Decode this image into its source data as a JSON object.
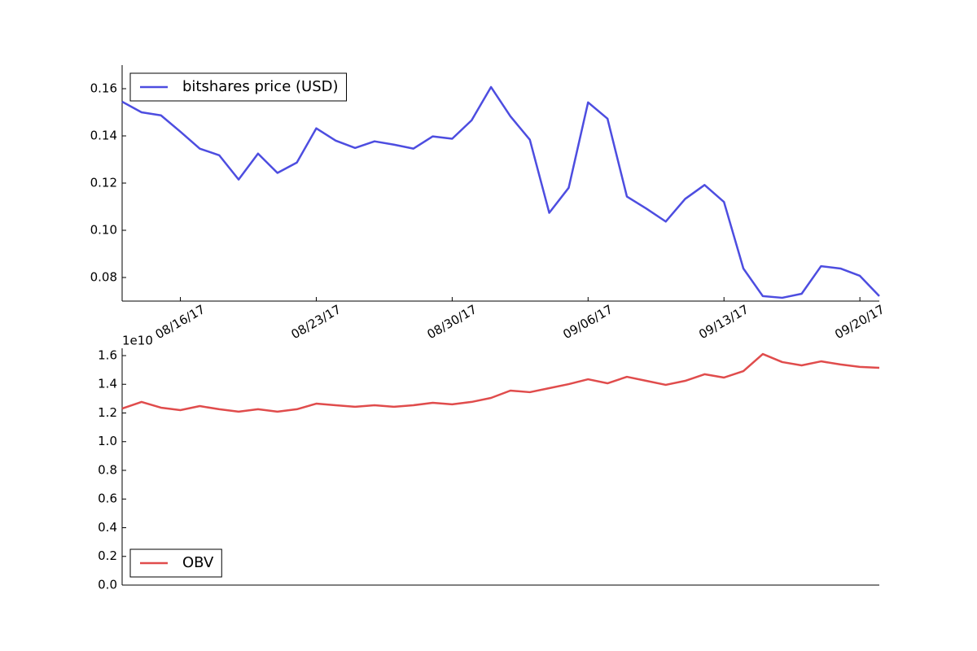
{
  "chart_data": [
    {
      "type": "line",
      "legend": "upper left",
      "xlim": [
        "2017-08-13",
        "2017-09-21"
      ],
      "x": [
        "2017-08-13",
        "2017-08-14",
        "2017-08-15",
        "2017-08-16",
        "2017-08-17",
        "2017-08-18",
        "2017-08-19",
        "2017-08-20",
        "2017-08-21",
        "2017-08-22",
        "2017-08-23",
        "2017-08-24",
        "2017-08-25",
        "2017-08-26",
        "2017-08-27",
        "2017-08-28",
        "2017-08-29",
        "2017-08-30",
        "2017-08-31",
        "2017-09-01",
        "2017-09-02",
        "2017-09-03",
        "2017-09-04",
        "2017-09-05",
        "2017-09-06",
        "2017-09-07",
        "2017-09-08",
        "2017-09-09",
        "2017-09-10",
        "2017-09-11",
        "2017-09-12",
        "2017-09-13",
        "2017-09-14",
        "2017-09-15",
        "2017-09-16",
        "2017-09-17",
        "2017-09-18",
        "2017-09-19",
        "2017-09-20",
        "2017-09-21"
      ],
      "xticks": [
        {
          "value": "2017-08-16",
          "label": "08/16/17"
        },
        {
          "value": "2017-08-23",
          "label": "08/23/17"
        },
        {
          "value": "2017-08-30",
          "label": "08/30/17"
        },
        {
          "value": "2017-09-06",
          "label": "09/06/17"
        },
        {
          "value": "2017-09-13",
          "label": "09/13/17"
        },
        {
          "value": "2017-09-20",
          "label": "09/20/17"
        }
      ],
      "ylim": [
        0.07,
        0.17
      ],
      "yticks": [
        0.08,
        {
          "value": 0.1,
          "label": "0.10"
        },
        0.12,
        0.14,
        0.16
      ],
      "series": [
        {
          "name": "bitshares price (USD)",
          "color": "#4d4de0",
          "values": [
            0.1545,
            0.15,
            0.1487,
            0.1418,
            0.1346,
            0.1318,
            0.1215,
            0.1325,
            0.1243,
            0.1287,
            0.1432,
            0.138,
            0.1349,
            0.1377,
            0.1363,
            0.1346,
            0.1398,
            0.1388,
            0.1466,
            0.1607,
            0.1483,
            0.1384,
            0.1074,
            0.118,
            0.1542,
            0.1473,
            0.1143,
            0.1092,
            0.1037,
            0.1133,
            0.1192,
            0.112,
            0.0838,
            0.0721,
            0.0714,
            0.0731,
            0.0848,
            0.0838,
            0.0807,
            0.0721
          ]
        }
      ]
    },
    {
      "type": "line",
      "legend": "lower left",
      "xlim": [
        "2017-08-13",
        "2017-09-21"
      ],
      "x": [
        "2017-08-13",
        "2017-08-14",
        "2017-08-15",
        "2017-08-16",
        "2017-08-17",
        "2017-08-18",
        "2017-08-19",
        "2017-08-20",
        "2017-08-21",
        "2017-08-22",
        "2017-08-23",
        "2017-08-24",
        "2017-08-25",
        "2017-08-26",
        "2017-08-27",
        "2017-08-28",
        "2017-08-29",
        "2017-08-30",
        "2017-08-31",
        "2017-09-01",
        "2017-09-02",
        "2017-09-03",
        "2017-09-04",
        "2017-09-05",
        "2017-09-06",
        "2017-09-07",
        "2017-09-08",
        "2017-09-09",
        "2017-09-10",
        "2017-09-11",
        "2017-09-12",
        "2017-09-13",
        "2017-09-14",
        "2017-09-15",
        "2017-09-16",
        "2017-09-17",
        "2017-09-18",
        "2017-09-19",
        "2017-09-20",
        "2017-09-21"
      ],
      "ylim": [
        0,
        1.651
      ],
      "y_offset_label": "1e10",
      "yticks": [
        {
          "value": 0,
          "label": "0.0"
        },
        0.2,
        0.4,
        0.6,
        0.8,
        {
          "value": 1,
          "label": "1.0"
        },
        1.2,
        1.4,
        1.6
      ],
      "series": [
        {
          "name": "OBV",
          "color": "#e04c4c",
          "values": [
            1.231,
            1.277,
            1.237,
            1.22,
            1.248,
            1.226,
            1.209,
            1.226,
            1.209,
            1.226,
            1.265,
            1.254,
            1.243,
            1.254,
            1.243,
            1.254,
            1.271,
            1.26,
            1.277,
            1.305,
            1.356,
            1.345,
            1.373,
            1.401,
            1.435,
            1.407,
            1.452,
            1.424,
            1.396,
            1.424,
            1.47,
            1.447,
            1.492,
            1.611,
            1.555,
            1.532,
            1.56,
            1.538,
            1.521,
            1.515
          ]
        }
      ]
    }
  ]
}
